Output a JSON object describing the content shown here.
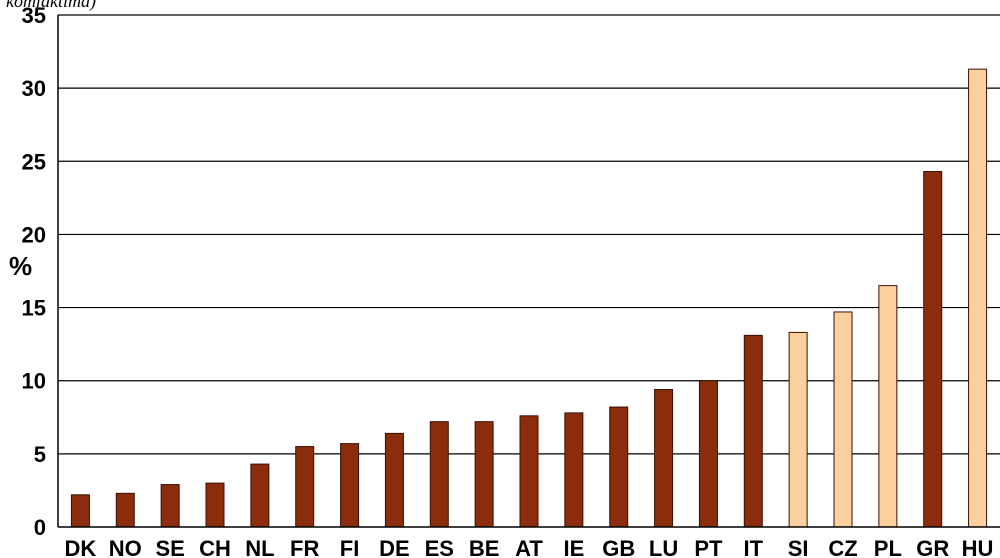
{
  "header_fragment": "komfaktima)",
  "chart_data": {
    "type": "bar",
    "title": "",
    "xlabel": "",
    "ylabel": "%",
    "ylim": [
      0,
      35
    ],
    "yticks": [
      0,
      5,
      10,
      15,
      20,
      25,
      30,
      35
    ],
    "grid": true,
    "colors": {
      "dark": "#8b2c0c",
      "light": "#fccf9f",
      "edge": "#3a1000",
      "grid": "#000000"
    },
    "categories": [
      "DK",
      "NO",
      "SE",
      "CH",
      "NL",
      "FR",
      "FI",
      "DE",
      "ES",
      "BE",
      "AT",
      "IE",
      "GB",
      "LU",
      "PT",
      "IT",
      "SI",
      "CZ",
      "PL",
      "GR",
      "HU"
    ],
    "values": [
      2.2,
      2.3,
      2.9,
      3.0,
      4.3,
      5.5,
      5.7,
      6.4,
      7.2,
      7.2,
      7.6,
      7.8,
      8.2,
      9.4,
      10.0,
      13.1,
      13.3,
      14.7,
      16.5,
      24.3,
      31.3
    ],
    "bar_colors": [
      "dark",
      "dark",
      "dark",
      "dark",
      "dark",
      "dark",
      "dark",
      "dark",
      "dark",
      "dark",
      "dark",
      "dark",
      "dark",
      "dark",
      "dark",
      "dark",
      "light",
      "light",
      "light",
      "dark",
      "light"
    ]
  }
}
